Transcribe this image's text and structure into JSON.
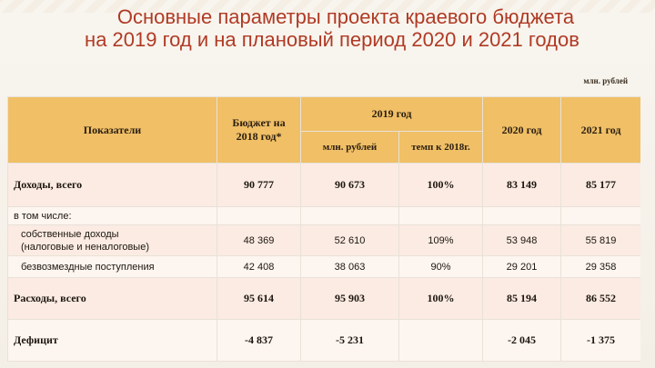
{
  "title": {
    "line1": "Основные параметры проекта краевого бюджета",
    "line2": "на 2019 год и на плановый период 2020 и 2021 годов"
  },
  "units": "млн. рублей",
  "table": {
    "headers": {
      "indicators": "Показатели",
      "budget2018": "Бюджет на 2018 год*",
      "y2019": "2019 год",
      "y2019_mln": "млн. рублей",
      "y2019_rate": "темп к 2018г.",
      "y2020": "2020 год",
      "y2021": "2021 год"
    },
    "rows": [
      {
        "label": "Доходы, всего",
        "b2018": "90 777",
        "v2019": "90 673",
        "rate": "100%",
        "v2020": "83 149",
        "v2021": "85 177"
      },
      {
        "label": "в том числе:",
        "b2018": "",
        "v2019": "",
        "rate": "",
        "v2020": "",
        "v2021": ""
      },
      {
        "label_line1": "собственные доходы",
        "label_line2": "(налоговые и неналоговые)",
        "b2018": "48 369",
        "v2019": "52 610",
        "rate": "109%",
        "v2020": "53 948",
        "v2021": "55 819"
      },
      {
        "label": "безвозмездные поступления",
        "b2018": "42 408",
        "v2019": "38 063",
        "rate": "90%",
        "v2020": "29 201",
        "v2021": "29 358"
      },
      {
        "label": "Расходы, всего",
        "b2018": "95 614",
        "v2019": "95 903",
        "rate": "100%",
        "v2020": "85 194",
        "v2021": "86 552"
      },
      {
        "label": "Дефицит",
        "b2018": "-4 837",
        "v2019": "-5 231",
        "rate": "",
        "v2020": "-2 045",
        "v2021": "-1 375"
      }
    ]
  }
}
